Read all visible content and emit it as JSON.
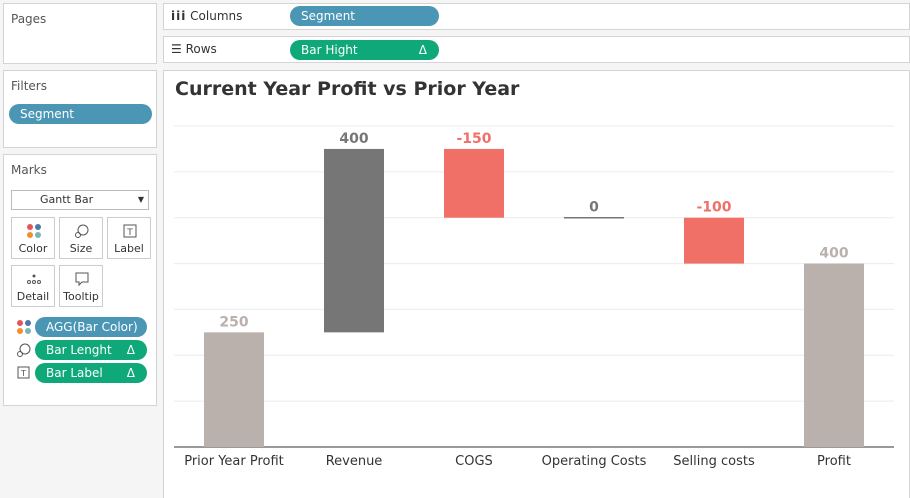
{
  "pages": {
    "title": "Pages"
  },
  "filters": {
    "title": "Filters",
    "pills": [
      "Segment"
    ]
  },
  "marks": {
    "title": "Marks",
    "mark_type": "Gantt Bar",
    "buttons": [
      "Color",
      "Size",
      "Label",
      "Detail",
      "Tooltip"
    ],
    "pills": [
      {
        "label": "AGG(Bar Color)"
      },
      {
        "label": "Bar Lenght",
        "icon": "Δ"
      },
      {
        "label": "Bar Label",
        "icon": "Δ"
      }
    ]
  },
  "shelves": {
    "columns_label": "Columns",
    "columns_pill": "Segment",
    "rows_label": "Rows",
    "rows_pill": "Bar Hight",
    "rows_pill_icon": "Δ"
  },
  "chart_data": {
    "type": "waterfall",
    "title": "Current Year Profit vs Prior Year",
    "categories": [
      "Prior Year Profit",
      "Revenue",
      "COGS",
      "Operating Costs",
      "Selling costs",
      "Profit"
    ],
    "values": [
      250,
      400,
      -150,
      0,
      -100,
      400
    ],
    "colors": [
      "#bab0ac",
      "#767676",
      "#f07068",
      "#767676",
      "#f07068",
      "#bab0ac"
    ],
    "ylim": [
      0,
      700
    ],
    "yticks": [
      0,
      100,
      200,
      300,
      400,
      500,
      600,
      700
    ],
    "grid": true
  }
}
